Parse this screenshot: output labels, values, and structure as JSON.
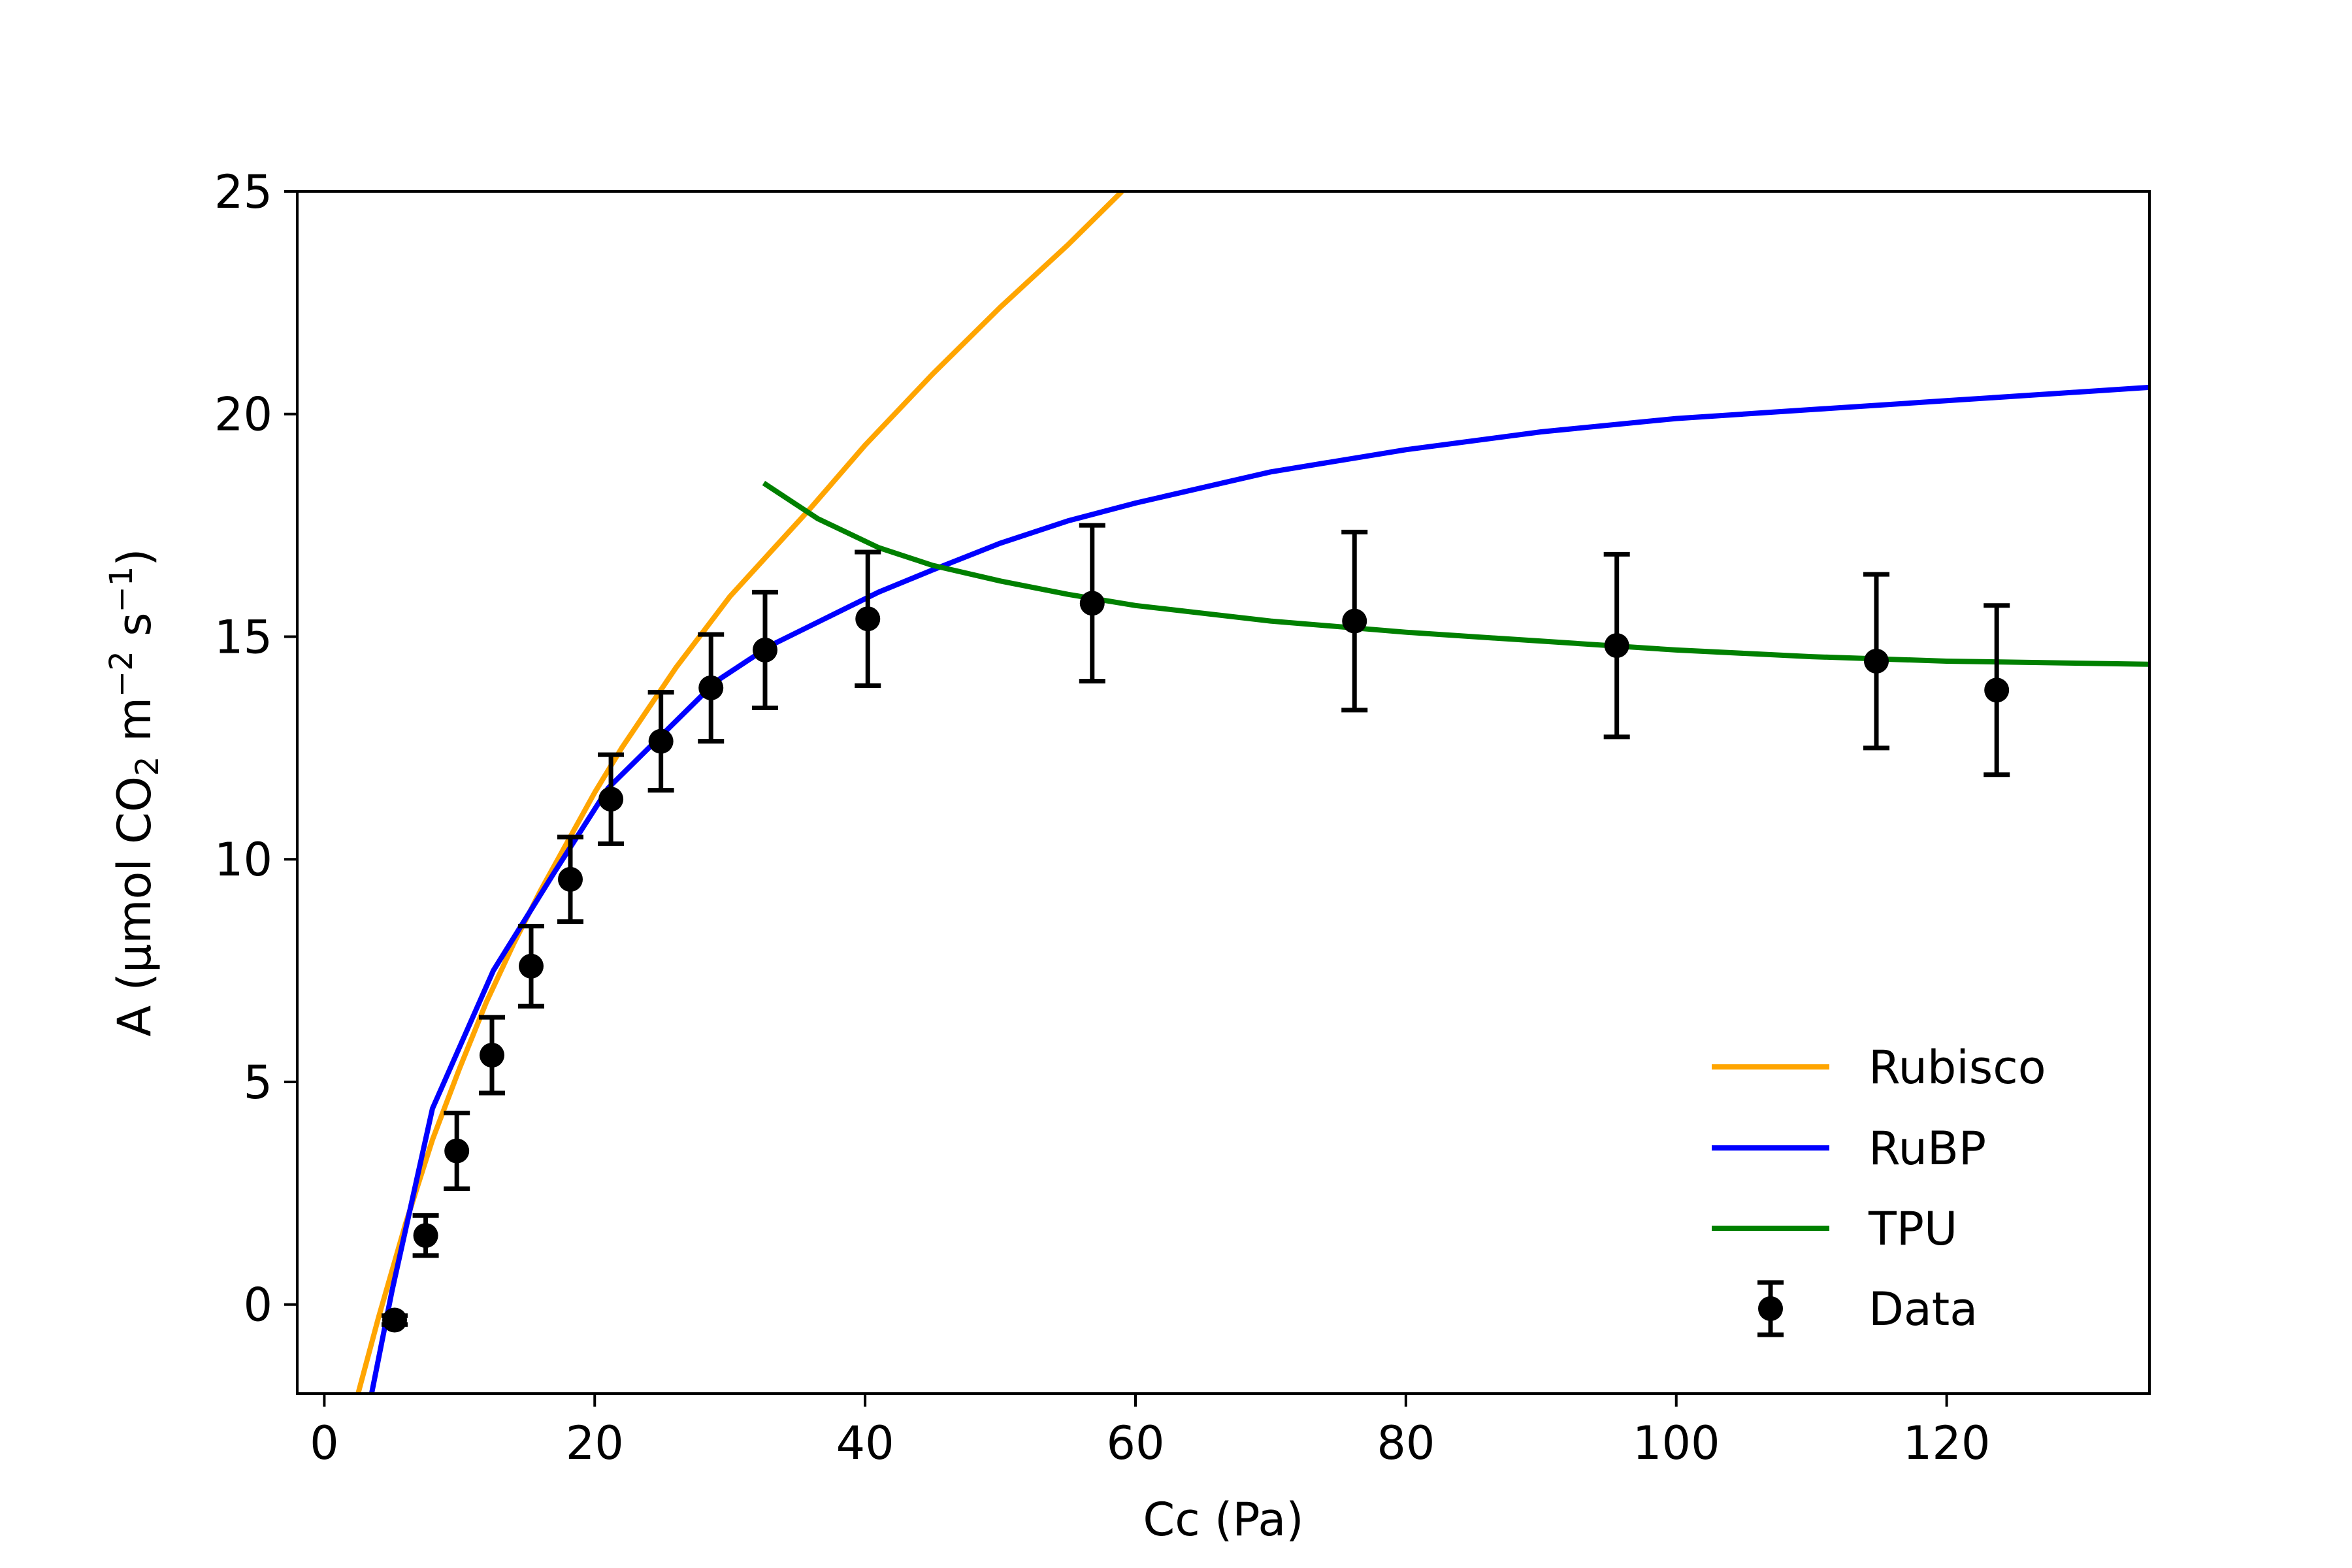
{
  "chart_data": {
    "type": "line",
    "xlabel": "Cc (Pa)",
    "ylabel_parts": {
      "lead": "A (μmol CO",
      "co2_sub": "2",
      "m": " m",
      "m_sup": "−2",
      "s": " s",
      "s_sup": "−1",
      "close": ")"
    },
    "xlim": [
      -2,
      135
    ],
    "ylim": [
      -2,
      25
    ],
    "xticks": [
      0,
      20,
      40,
      60,
      80,
      100,
      120
    ],
    "xtick_labels": [
      "0",
      "20",
      "40",
      "60",
      "80",
      "100",
      "120"
    ],
    "yticks": [
      0,
      5,
      10,
      15,
      20,
      25
    ],
    "ytick_labels": [
      "0",
      "5",
      "10",
      "15",
      "20",
      "25"
    ],
    "grid": false,
    "legend_position": "lower-right",
    "series": [
      {
        "name": "Rubisco",
        "kind": "line",
        "color": "#ffa500",
        "x": [
          2.5,
          4,
          6,
          8,
          10,
          12,
          14,
          16,
          18,
          20,
          22,
          24,
          26,
          28,
          30,
          33,
          36,
          40,
          45,
          50,
          55,
          59
        ],
        "y": [
          -2,
          -0.3,
          1.8,
          3.7,
          5.3,
          6.8,
          8.1,
          9.3,
          10.4,
          11.5,
          12.5,
          13.4,
          14.3,
          15.1,
          15.9,
          16.9,
          17.9,
          19.3,
          20.9,
          22.4,
          23.8,
          25
        ]
      },
      {
        "name": "RuBP",
        "kind": "line",
        "color": "#0000ff",
        "x": [
          3.5,
          5,
          8,
          12.5,
          17,
          21,
          25,
          29,
          33,
          37,
          41,
          45,
          50,
          55,
          60,
          70,
          80,
          90,
          100,
          110,
          120,
          135
        ],
        "y": [
          -2,
          0.3,
          4.4,
          7.5,
          9.7,
          11.6,
          12.8,
          14.0,
          14.8,
          15.4,
          16.0,
          16.5,
          17.1,
          17.6,
          18.0,
          18.7,
          19.2,
          19.6,
          19.9,
          20.1,
          20.3,
          20.6
        ]
      },
      {
        "name": "TPU",
        "kind": "line",
        "color": "#008000",
        "x": [
          32.5,
          36.5,
          41,
          45,
          50,
          55,
          60,
          70,
          80,
          90,
          100,
          110,
          120,
          135
        ],
        "y": [
          18.45,
          17.65,
          17.0,
          16.6,
          16.25,
          15.95,
          15.7,
          15.35,
          15.1,
          14.9,
          14.7,
          14.55,
          14.45,
          14.38
        ]
      },
      {
        "name": "Data",
        "kind": "errorbar",
        "color": "#000000",
        "x": [
          5.2,
          7.5,
          9.8,
          12.4,
          15.3,
          18.2,
          21.2,
          24.9,
          28.6,
          32.6,
          40.2,
          56.8,
          76.2,
          95.6,
          114.8,
          123.7
        ],
        "y": [
          -0.35,
          1.55,
          3.45,
          5.6,
          7.6,
          9.55,
          11.35,
          12.65,
          13.85,
          14.7,
          15.4,
          15.75,
          15.35,
          14.8,
          14.45,
          13.8
        ],
        "yerr": [
          0.1,
          0.45,
          0.85,
          0.85,
          0.9,
          0.95,
          1.0,
          1.1,
          1.2,
          1.3,
          1.5,
          1.75,
          2.0,
          2.05,
          1.95,
          1.9
        ]
      }
    ]
  }
}
